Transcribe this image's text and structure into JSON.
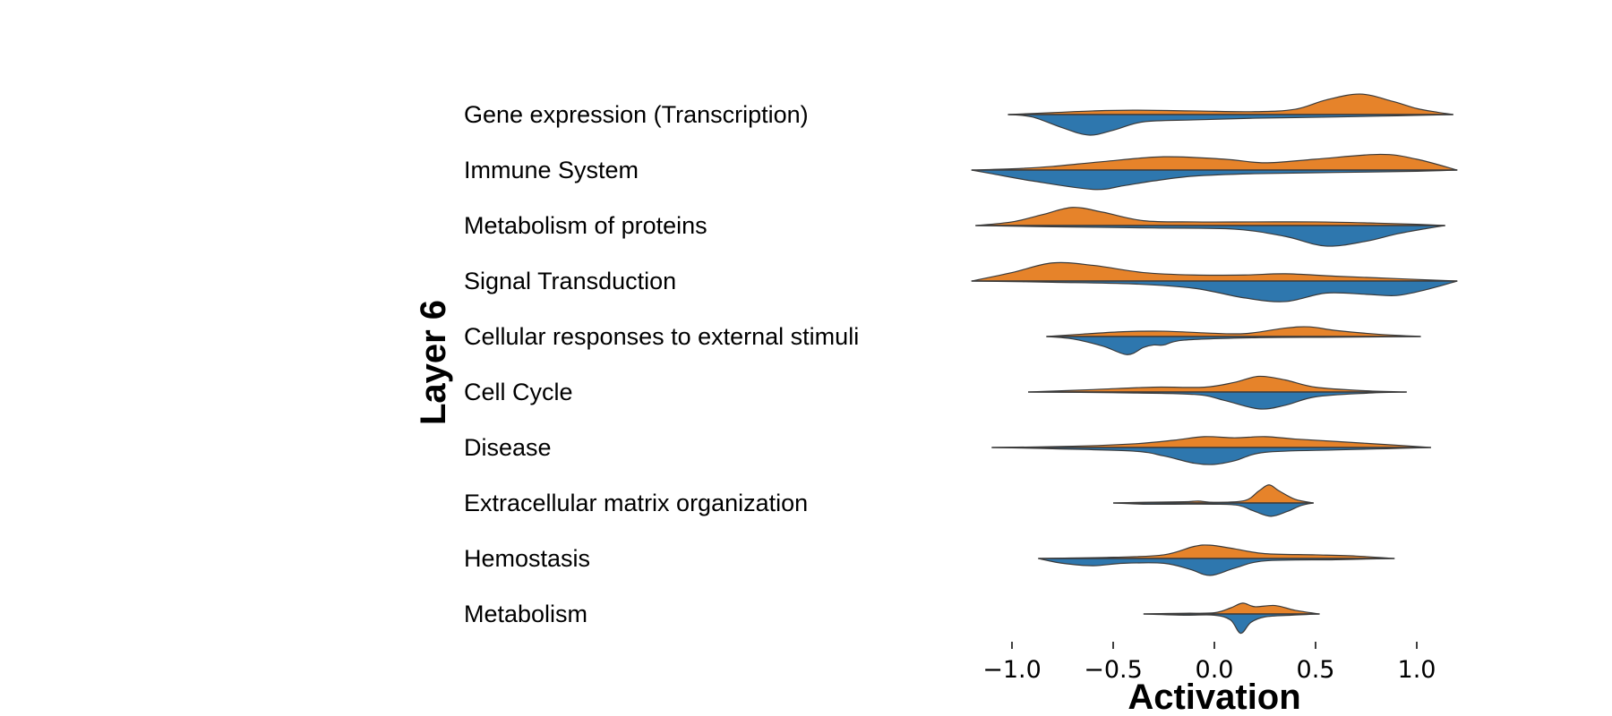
{
  "chart_data": {
    "type": "split-violin",
    "xlabel": "Activation",
    "ylabel": "Layer 6",
    "xlim": [
      -1.25,
      1.25
    ],
    "xticks": [
      -1.0,
      -0.5,
      0.0,
      0.5,
      1.0
    ],
    "xtick_labels": [
      "−1.0",
      "−0.5",
      "0.0",
      "0.5",
      "1.0"
    ],
    "grid": false,
    "colors": {
      "upper": "#E6832A",
      "lower": "#2E77AE",
      "edge": "#3a3a3a"
    },
    "categories": [
      {
        "label": "Gene expression (Transcription)",
        "range": [
          -1.02,
          1.18
        ],
        "upper": [
          [
            -1.02,
            0.0
          ],
          [
            -0.8,
            0.08
          ],
          [
            -0.6,
            0.15
          ],
          [
            -0.4,
            0.18
          ],
          [
            -0.1,
            0.15
          ],
          [
            0.2,
            0.12
          ],
          [
            0.4,
            0.22
          ],
          [
            0.55,
            0.6
          ],
          [
            0.72,
            0.85
          ],
          [
            0.88,
            0.55
          ],
          [
            1.0,
            0.25
          ],
          [
            1.1,
            0.1
          ],
          [
            1.18,
            0.0
          ]
        ],
        "lower": [
          [
            -1.02,
            0.0
          ],
          [
            -0.9,
            0.1
          ],
          [
            -0.75,
            0.55
          ],
          [
            -0.62,
            0.85
          ],
          [
            -0.5,
            0.65
          ],
          [
            -0.35,
            0.3
          ],
          [
            -0.1,
            0.22
          ],
          [
            0.2,
            0.15
          ],
          [
            0.6,
            0.1
          ],
          [
            0.9,
            0.05
          ],
          [
            1.18,
            0.0
          ]
        ]
      },
      {
        "label": "Immune System",
        "range": [
          -1.2,
          1.2
        ],
        "upper": [
          [
            -1.2,
            0.0
          ],
          [
            -1.0,
            0.05
          ],
          [
            -0.8,
            0.15
          ],
          [
            -0.55,
            0.35
          ],
          [
            -0.25,
            0.55
          ],
          [
            0.05,
            0.45
          ],
          [
            0.25,
            0.3
          ],
          [
            0.5,
            0.45
          ],
          [
            0.82,
            0.65
          ],
          [
            1.0,
            0.45
          ],
          [
            1.2,
            0.0
          ]
        ],
        "lower": [
          [
            -1.2,
            0.0
          ],
          [
            -1.1,
            0.15
          ],
          [
            -0.9,
            0.45
          ],
          [
            -0.6,
            0.8
          ],
          [
            -0.45,
            0.65
          ],
          [
            -0.3,
            0.45
          ],
          [
            -0.1,
            0.25
          ],
          [
            0.2,
            0.15
          ],
          [
            0.6,
            0.1
          ],
          [
            1.0,
            0.05
          ],
          [
            1.2,
            0.0
          ]
        ]
      },
      {
        "label": "Metabolism of proteins",
        "range": [
          -1.18,
          1.14
        ],
        "upper": [
          [
            -1.18,
            0.0
          ],
          [
            -1.0,
            0.15
          ],
          [
            -0.85,
            0.45
          ],
          [
            -0.7,
            0.75
          ],
          [
            -0.55,
            0.55
          ],
          [
            -0.35,
            0.2
          ],
          [
            -0.1,
            0.15
          ],
          [
            0.2,
            0.15
          ],
          [
            0.5,
            0.15
          ],
          [
            0.8,
            0.1
          ],
          [
            1.0,
            0.05
          ],
          [
            1.14,
            0.0
          ]
        ],
        "lower": [
          [
            -1.18,
            0.0
          ],
          [
            -0.8,
            0.05
          ],
          [
            -0.3,
            0.1
          ],
          [
            0.1,
            0.15
          ],
          [
            0.35,
            0.45
          ],
          [
            0.55,
            0.85
          ],
          [
            0.75,
            0.65
          ],
          [
            0.9,
            0.35
          ],
          [
            1.05,
            0.12
          ],
          [
            1.14,
            0.0
          ]
        ]
      },
      {
        "label": "Signal Transduction",
        "range": [
          -1.2,
          1.2
        ],
        "upper": [
          [
            -1.2,
            0.0
          ],
          [
            -1.0,
            0.35
          ],
          [
            -0.8,
            0.75
          ],
          [
            -0.6,
            0.65
          ],
          [
            -0.35,
            0.35
          ],
          [
            -0.1,
            0.25
          ],
          [
            0.15,
            0.25
          ],
          [
            0.35,
            0.3
          ],
          [
            0.6,
            0.2
          ],
          [
            0.9,
            0.1
          ],
          [
            1.2,
            0.0
          ]
        ],
        "lower": [
          [
            -1.2,
            0.0
          ],
          [
            -0.8,
            0.05
          ],
          [
            -0.4,
            0.12
          ],
          [
            -0.1,
            0.3
          ],
          [
            0.15,
            0.7
          ],
          [
            0.35,
            0.85
          ],
          [
            0.55,
            0.5
          ],
          [
            0.75,
            0.55
          ],
          [
            0.9,
            0.6
          ],
          [
            1.05,
            0.35
          ],
          [
            1.2,
            0.0
          ]
        ]
      },
      {
        "label": "Cellular responses to external stimuli",
        "range": [
          -0.83,
          1.02
        ],
        "upper": [
          [
            -0.83,
            0.0
          ],
          [
            -0.65,
            0.1
          ],
          [
            -0.45,
            0.2
          ],
          [
            -0.25,
            0.22
          ],
          [
            -0.05,
            0.15
          ],
          [
            0.15,
            0.12
          ],
          [
            0.35,
            0.35
          ],
          [
            0.47,
            0.4
          ],
          [
            0.6,
            0.25
          ],
          [
            0.8,
            0.1
          ],
          [
            1.02,
            0.0
          ]
        ],
        "lower": [
          [
            -0.83,
            0.0
          ],
          [
            -0.7,
            0.1
          ],
          [
            -0.55,
            0.4
          ],
          [
            -0.43,
            0.75
          ],
          [
            -0.35,
            0.45
          ],
          [
            -0.3,
            0.35
          ],
          [
            -0.25,
            0.35
          ],
          [
            -0.15,
            0.15
          ],
          [
            0.2,
            0.05
          ],
          [
            0.6,
            0.03
          ],
          [
            1.02,
            0.0
          ]
        ]
      },
      {
        "label": "Cell Cycle",
        "range": [
          -0.92,
          0.95
        ],
        "upper": [
          [
            -0.92,
            0.0
          ],
          [
            -0.6,
            0.1
          ],
          [
            -0.3,
            0.2
          ],
          [
            -0.05,
            0.2
          ],
          [
            0.1,
            0.4
          ],
          [
            0.22,
            0.65
          ],
          [
            0.35,
            0.5
          ],
          [
            0.5,
            0.2
          ],
          [
            0.75,
            0.05
          ],
          [
            0.95,
            0.0
          ]
        ],
        "lower": [
          [
            -0.92,
            0.0
          ],
          [
            -0.5,
            0.03
          ],
          [
            -0.1,
            0.1
          ],
          [
            0.05,
            0.35
          ],
          [
            0.22,
            0.7
          ],
          [
            0.35,
            0.55
          ],
          [
            0.5,
            0.2
          ],
          [
            0.75,
            0.05
          ],
          [
            0.95,
            0.0
          ]
        ]
      },
      {
        "label": "Disease",
        "range": [
          -1.1,
          1.07
        ],
        "upper": [
          [
            -1.1,
            0.0
          ],
          [
            -0.7,
            0.05
          ],
          [
            -0.4,
            0.15
          ],
          [
            -0.2,
            0.3
          ],
          [
            -0.05,
            0.45
          ],
          [
            0.1,
            0.4
          ],
          [
            0.25,
            0.45
          ],
          [
            0.4,
            0.35
          ],
          [
            0.6,
            0.25
          ],
          [
            0.85,
            0.12
          ],
          [
            1.07,
            0.0
          ]
        ],
        "lower": [
          [
            -1.1,
            0.0
          ],
          [
            -0.8,
            0.05
          ],
          [
            -0.4,
            0.15
          ],
          [
            -0.25,
            0.35
          ],
          [
            -0.1,
            0.65
          ],
          [
            0.0,
            0.7
          ],
          [
            0.1,
            0.55
          ],
          [
            0.25,
            0.2
          ],
          [
            0.6,
            0.1
          ],
          [
            0.85,
            0.05
          ],
          [
            1.07,
            0.0
          ]
        ]
      },
      {
        "label": "Extracellular matrix organization",
        "range": [
          -0.5,
          0.49
        ],
        "upper": [
          [
            -0.5,
            0.0
          ],
          [
            -0.35,
            0.03
          ],
          [
            -0.15,
            0.05
          ],
          [
            -0.08,
            0.08
          ],
          [
            0.0,
            0.03
          ],
          [
            0.15,
            0.1
          ],
          [
            0.22,
            0.5
          ],
          [
            0.27,
            0.75
          ],
          [
            0.32,
            0.5
          ],
          [
            0.4,
            0.15
          ],
          [
            0.49,
            0.0
          ]
        ],
        "lower": [
          [
            -0.5,
            0.0
          ],
          [
            -0.35,
            0.05
          ],
          [
            -0.2,
            0.05
          ],
          [
            0.0,
            0.05
          ],
          [
            0.12,
            0.1
          ],
          [
            0.2,
            0.35
          ],
          [
            0.28,
            0.55
          ],
          [
            0.36,
            0.35
          ],
          [
            0.43,
            0.1
          ],
          [
            0.49,
            0.0
          ]
        ]
      },
      {
        "label": "Hemostasis",
        "range": [
          -0.87,
          0.89
        ],
        "upper": [
          [
            -0.87,
            0.0
          ],
          [
            -0.5,
            0.05
          ],
          [
            -0.25,
            0.15
          ],
          [
            -0.1,
            0.5
          ],
          [
            -0.02,
            0.55
          ],
          [
            0.1,
            0.4
          ],
          [
            0.25,
            0.2
          ],
          [
            0.5,
            0.15
          ],
          [
            0.7,
            0.1
          ],
          [
            0.89,
            0.0
          ]
        ],
        "lower": [
          [
            -0.87,
            0.0
          ],
          [
            -0.75,
            0.2
          ],
          [
            -0.6,
            0.3
          ],
          [
            -0.45,
            0.2
          ],
          [
            -0.25,
            0.2
          ],
          [
            -0.12,
            0.45
          ],
          [
            -0.02,
            0.7
          ],
          [
            0.1,
            0.4
          ],
          [
            0.25,
            0.1
          ],
          [
            0.6,
            0.05
          ],
          [
            0.89,
            0.0
          ]
        ]
      },
      {
        "label": "Metabolism",
        "range": [
          -0.35,
          0.52
        ],
        "upper": [
          [
            -0.35,
            0.0
          ],
          [
            -0.15,
            0.03
          ],
          [
            0.0,
            0.05
          ],
          [
            0.08,
            0.25
          ],
          [
            0.14,
            0.45
          ],
          [
            0.2,
            0.3
          ],
          [
            0.3,
            0.35
          ],
          [
            0.4,
            0.15
          ],
          [
            0.52,
            0.0
          ]
        ],
        "lower": [
          [
            -0.35,
            0.0
          ],
          [
            -0.15,
            0.05
          ],
          [
            0.0,
            0.05
          ],
          [
            0.08,
            0.25
          ],
          [
            0.13,
            0.8
          ],
          [
            0.18,
            0.35
          ],
          [
            0.25,
            0.12
          ],
          [
            0.38,
            0.05
          ],
          [
            0.52,
            0.0
          ]
        ]
      }
    ]
  }
}
